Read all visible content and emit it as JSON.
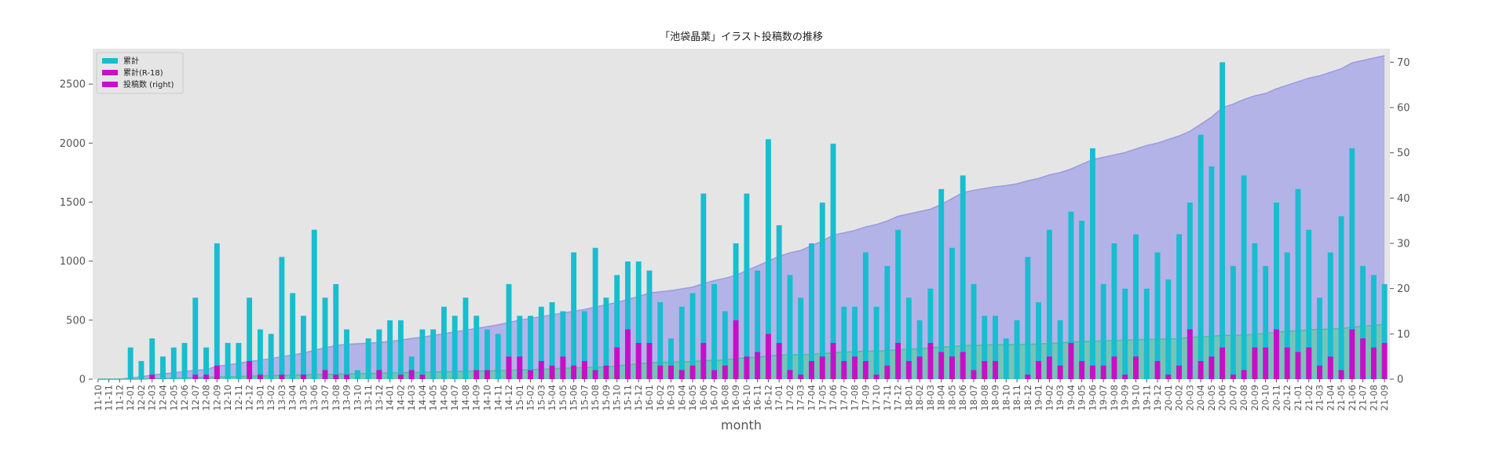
{
  "chart_data": {
    "type": "bar",
    "title": "「池袋晶葉」イラスト投稿数の推移",
    "xlabel": "month",
    "ylabel": "",
    "ylim": [
      0,
      2800
    ],
    "ylim_right": [
      0,
      73
    ],
    "yticks": [
      0,
      500,
      1000,
      1500,
      2000,
      2500
    ],
    "yticks_right": [
      0,
      10,
      20,
      30,
      40,
      50,
      60,
      70
    ],
    "grid": false,
    "legend_position": "upper-left",
    "colors": {
      "bar_main": "#17becf",
      "bar_r18": "#c80fc8",
      "area_total": "#b0b0e8",
      "area_total_line": "#9a9ae2",
      "area_r18": "#64c8a8",
      "area_r18_line": "#4cbfa0",
      "plot_bg": "#e5e5e5"
    },
    "legend": [
      {
        "label": "累計",
        "color": "#17becf"
      },
      {
        "label": "累計(R-18)",
        "color": "#c80fc8"
      },
      {
        "label": "投稿数 (right)",
        "color": "#c80fc8"
      }
    ],
    "categories": [
      "11-10",
      "11-11",
      "11-12",
      "12-01",
      "12-02",
      "12-03",
      "12-04",
      "12-05",
      "12-06",
      "12-07",
      "12-08",
      "12-09",
      "12-10",
      "12-11",
      "12-12",
      "13-01",
      "13-02",
      "13-03",
      "13-04",
      "13-05",
      "13-06",
      "13-07",
      "13-08",
      "13-09",
      "13-10",
      "13-11",
      "13-12",
      "14-01",
      "14-02",
      "14-03",
      "14-04",
      "14-05",
      "14-06",
      "14-07",
      "14-08",
      "14-09",
      "14-10",
      "14-11",
      "14-12",
      "15-01",
      "15-02",
      "15-03",
      "15-04",
      "15-05",
      "15-06",
      "15-07",
      "15-08",
      "15-09",
      "15-10",
      "15-11",
      "15-12",
      "16-01",
      "16-02",
      "16-03",
      "16-04",
      "16-05",
      "16-06",
      "16-07",
      "16-08",
      "16-09",
      "16-10",
      "16-11",
      "16-12",
      "17-01",
      "17-02",
      "17-03",
      "17-04",
      "17-05",
      "17-06",
      "17-07",
      "17-08",
      "17-09",
      "17-10",
      "17-11",
      "17-12",
      "18-01",
      "18-02",
      "18-03",
      "18-04",
      "18-05",
      "18-06",
      "18-07",
      "18-08",
      "18-09",
      "18-10",
      "18-11",
      "18-12",
      "19-01",
      "19-02",
      "19-03",
      "19-04",
      "19-05",
      "19-06",
      "19-07",
      "19-08",
      "19-09",
      "19-10",
      "19-11",
      "19-12",
      "20-01",
      "20-02",
      "20-03",
      "20-04",
      "20-05",
      "20-06",
      "20-07",
      "20-08",
      "20-09",
      "20-10",
      "20-11",
      "20-12",
      "21-01",
      "21-02",
      "21-03",
      "21-04",
      "21-05",
      "21-06",
      "21-07",
      "21-08",
      "21-09"
    ],
    "series": [
      {
        "name": "累計",
        "axis": "right",
        "kind": "bar",
        "values": [
          0,
          0,
          0,
          7,
          4,
          9,
          5,
          7,
          8,
          18,
          7,
          30,
          8,
          8,
          18,
          11,
          10,
          27,
          19,
          14,
          33,
          18,
          21,
          11,
          2,
          9,
          11,
          13,
          13,
          5,
          11,
          11,
          16,
          14,
          18,
          14,
          11,
          10,
          21,
          14,
          14,
          16,
          17,
          15,
          28,
          15,
          29,
          18,
          23,
          26,
          26,
          24,
          17,
          9,
          16,
          19,
          41,
          21,
          15,
          30,
          41,
          24,
          53,
          34,
          23,
          18,
          30,
          39,
          52,
          16,
          16,
          28,
          16,
          25,
          33,
          18,
          13,
          20,
          42,
          29,
          45,
          21,
          14,
          14,
          9,
          13,
          27,
          17,
          33,
          13,
          37,
          35,
          51,
          21,
          30,
          20,
          32,
          20,
          28,
          22,
          32,
          39,
          54,
          47,
          70,
          25,
          45,
          30,
          25,
          39,
          28,
          42,
          33,
          18,
          28,
          36,
          51,
          25,
          23,
          21
        ]
      },
      {
        "name": "累計(R-18)",
        "axis": "right",
        "kind": "bar",
        "values": [
          0,
          0,
          0,
          0,
          0,
          1,
          0,
          0,
          0,
          1,
          1,
          3,
          0,
          0,
          4,
          1,
          0,
          1,
          0,
          1,
          0,
          2,
          1,
          1,
          0,
          0,
          2,
          0,
          1,
          2,
          1,
          0,
          0,
          0,
          0,
          2,
          2,
          0,
          5,
          5,
          2,
          4,
          3,
          5,
          3,
          4,
          2,
          3,
          7,
          11,
          8,
          8,
          3,
          3,
          2,
          3,
          8,
          2,
          3,
          13,
          5,
          6,
          10,
          8,
          2,
          1,
          4,
          5,
          8,
          4,
          5,
          4,
          1,
          3,
          8,
          4,
          5,
          8,
          6,
          5,
          6,
          2,
          4,
          4,
          0,
          0,
          1,
          4,
          5,
          3,
          8,
          4,
          3,
          3,
          5,
          1,
          5,
          0,
          4,
          1,
          3,
          11,
          4,
          5,
          7,
          1,
          2,
          7,
          7,
          11,
          7,
          6,
          7,
          3,
          5,
          2,
          11,
          9,
          7,
          8
        ]
      },
      {
        "name": "累計",
        "axis": "left",
        "kind": "area",
        "values": [
          0,
          0,
          0,
          10,
          20,
          35,
          45,
          55,
          65,
          75,
          80,
          110,
          120,
          135,
          150,
          160,
          175,
          190,
          205,
          220,
          245,
          265,
          285,
          295,
          300,
          305,
          310,
          320,
          330,
          345,
          355,
          370,
          385,
          400,
          415,
          430,
          445,
          460,
          480,
          500,
          515,
          530,
          545,
          560,
          575,
          590,
          610,
          630,
          650,
          675,
          700,
          730,
          740,
          750,
          765,
          780,
          810,
          835,
          855,
          880,
          920,
          960,
          1000,
          1040,
          1070,
          1090,
          1130,
          1170,
          1220,
          1240,
          1260,
          1290,
          1310,
          1340,
          1380,
          1400,
          1420,
          1440,
          1480,
          1530,
          1580,
          1600,
          1615,
          1630,
          1640,
          1655,
          1680,
          1700,
          1730,
          1750,
          1780,
          1820,
          1860,
          1880,
          1900,
          1920,
          1950,
          1980,
          2000,
          2030,
          2060,
          2100,
          2160,
          2220,
          2300,
          2330,
          2370,
          2400,
          2420,
          2460,
          2490,
          2520,
          2550,
          2570,
          2600,
          2630,
          2680,
          2700,
          2720,
          2740
        ]
      },
      {
        "name": "累計(R-18)",
        "axis": "left",
        "kind": "area",
        "values": [
          0,
          0,
          0,
          0,
          0,
          5,
          6,
          8,
          10,
          12,
          14,
          18,
          20,
          22,
          26,
          28,
          30,
          32,
          34,
          36,
          38,
          40,
          42,
          44,
          46,
          48,
          50,
          52,
          54,
          56,
          58,
          60,
          62,
          64,
          66,
          68,
          70,
          72,
          75,
          78,
          80,
          84,
          87,
          92,
          95,
          99,
          101,
          104,
          111,
          122,
          130,
          138,
          141,
          144,
          146,
          149,
          157,
          159,
          162,
          175,
          180,
          186,
          196,
          204,
          206,
          207,
          211,
          216,
          224,
          228,
          233,
          237,
          238,
          241,
          249,
          253,
          258,
          266,
          272,
          277,
          283,
          285,
          289,
          293,
          293,
          293,
          294,
          298,
          303,
          306,
          314,
          318,
          321,
          324,
          329,
          330,
          335,
          335,
          339,
          340,
          343,
          354,
          358,
          363,
          370,
          371,
          373,
          380,
          387,
          398,
          405,
          411,
          418,
          421,
          426,
          428,
          439,
          448,
          455,
          463
        ]
      }
    ]
  }
}
